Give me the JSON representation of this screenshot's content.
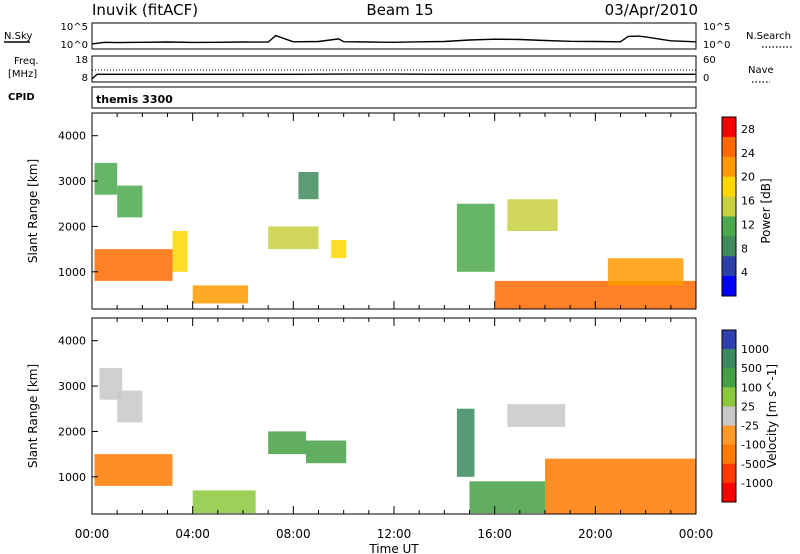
{
  "header": {
    "station": "Inuvik (fitACF)",
    "beam": "Beam 15",
    "date": "03/Apr/2010"
  },
  "strip_labels": {
    "nsky": "N.Sky",
    "nsearch": "N.Search",
    "freq_line1": "Freq.",
    "freq_line2": "[MHz]",
    "nave": "Nave",
    "cpid": "CPID",
    "cpid_value": "themis 3300"
  },
  "strip_ticks": {
    "nsky_top": "10^5",
    "nsky_bottom": "10^0",
    "nsearch_top": "10^5",
    "nsearch_bottom": "10^0",
    "freq_top": "18",
    "freq_bottom": "8",
    "nave_top": "60",
    "nave_bottom": "0"
  },
  "colors": {
    "power_scale": [
      "#0000ff",
      "#2b3fa6",
      "#3f8a5a",
      "#4ca84c",
      "#c8d040",
      "#ffd700",
      "#ff9a00",
      "#ff6a00",
      "#ff0000"
    ],
    "velocity_scale": [
      "#2f3fb0",
      "#3a8a5e",
      "#45a045",
      "#8cc83c",
      "#c8c8c8",
      "#ff9a2a",
      "#ff7a00",
      "#ff3a00",
      "#ff0000"
    ]
  },
  "chart_data": [
    {
      "type": "line",
      "title": "N.Sky / N.Search",
      "x_unit": "hours UT",
      "y_scale": "log",
      "ylim": [
        1,
        100000
      ],
      "x": [
        0,
        0.5,
        1,
        2,
        3,
        4,
        5,
        6,
        7,
        7.3,
        8,
        9,
        9.8,
        10,
        11,
        12,
        13,
        14,
        15,
        16,
        17,
        18,
        19,
        20,
        21,
        21.3,
        21.7,
        22,
        23,
        24
      ],
      "series": [
        {
          "values": [
            5,
            12,
            10,
            12,
            14,
            11,
            12,
            14,
            13,
            400,
            15,
            18,
            70,
            16,
            14,
            12,
            15,
            18,
            40,
            60,
            50,
            30,
            20,
            18,
            15,
            250,
            300,
            200,
            25,
            15
          ]
        }
      ]
    },
    {
      "type": "line",
      "title": "Freq. [MHz] / Nave",
      "x_unit": "hours UT",
      "ylim": [
        8,
        18
      ],
      "x": [
        0,
        0.2,
        2,
        4,
        6,
        8,
        10,
        12,
        14,
        16,
        18,
        20,
        22,
        24
      ],
      "series": [
        {
          "values": [
            8.5,
            10.6,
            10.6,
            10.6,
            10.6,
            10.6,
            10.7,
            10.7,
            10.6,
            10.6,
            10.6,
            10.6,
            10.6,
            10.6
          ]
        }
      ]
    },
    {
      "type": "heatmap",
      "xlabel": "Time UT",
      "ylabel": "Slant Range [km]",
      "colorbar_label": "Power [dB]",
      "colorbar_ticks": [
        "4",
        "8",
        "12",
        "16",
        "20",
        "24",
        "28"
      ],
      "zlim": [
        0,
        30
      ],
      "xlim": [
        0,
        24
      ],
      "ylim": [
        180,
        4500
      ],
      "y_ticks": [
        "1000",
        "2000",
        "3000",
        "4000"
      ],
      "x_ticks": [
        "00:00",
        "04:00",
        "08:00",
        "12:00",
        "16:00",
        "20:00",
        "00:00"
      ],
      "regions": [
        {
          "t0": 0.1,
          "t1": 3.2,
          "r0": 800,
          "r1": 1500,
          "value": 26
        },
        {
          "t0": 0.1,
          "t1": 1.0,
          "r0": 2700,
          "r1": 3400,
          "value": 10
        },
        {
          "t0": 1.0,
          "t1": 2.0,
          "r0": 2200,
          "r1": 2900,
          "value": 12
        },
        {
          "t0": 3.2,
          "t1": 3.8,
          "r0": 1000,
          "r1": 1900,
          "value": 18
        },
        {
          "t0": 4.0,
          "t1": 6.2,
          "r0": 300,
          "r1": 700,
          "value": 22
        },
        {
          "t0": 7.0,
          "t1": 9.0,
          "r0": 1500,
          "r1": 2000,
          "value": 16
        },
        {
          "t0": 8.2,
          "t1": 9.0,
          "r0": 2600,
          "r1": 3200,
          "value": 9
        },
        {
          "t0": 9.5,
          "t1": 10.1,
          "r0": 1300,
          "r1": 1700,
          "value": 18
        },
        {
          "t0": 14.5,
          "t1": 16.0,
          "r0": 1000,
          "r1": 2500,
          "value": 12
        },
        {
          "t0": 16.5,
          "t1": 18.5,
          "r0": 1900,
          "r1": 2600,
          "value": 16
        },
        {
          "t0": 16.0,
          "t1": 24.0,
          "r0": 180,
          "r1": 800,
          "value": 24
        },
        {
          "t0": 20.5,
          "t1": 23.5,
          "r0": 700,
          "r1": 1300,
          "value": 22
        }
      ]
    },
    {
      "type": "heatmap",
      "xlabel": "Time UT",
      "ylabel": "Slant Range [km]",
      "colorbar_label": "Velocity [m s^-1]",
      "colorbar_ticks": [
        "1000",
        "500",
        "100",
        "25",
        "-25",
        "-100",
        "-500",
        "-1000"
      ],
      "xlim": [
        0,
        24
      ],
      "ylim": [
        180,
        4500
      ],
      "y_ticks": [
        "1000",
        "2000",
        "3000",
        "4000"
      ],
      "x_ticks": [
        "00:00",
        "04:00",
        "08:00",
        "12:00",
        "16:00",
        "20:00",
        "00:00"
      ],
      "regions": [
        {
          "t0": 0.1,
          "t1": 3.2,
          "r0": 800,
          "r1": 1500,
          "value": -200
        },
        {
          "t0": 0.3,
          "t1": 1.2,
          "r0": 2700,
          "r1": 3400,
          "value": 0
        },
        {
          "t0": 1.0,
          "t1": 2.0,
          "r0": 2200,
          "r1": 2900,
          "value": 0
        },
        {
          "t0": 4.0,
          "t1": 6.5,
          "r0": 200,
          "r1": 700,
          "value": 60
        },
        {
          "t0": 7.0,
          "t1": 8.5,
          "r0": 1500,
          "r1": 2000,
          "value": 300
        },
        {
          "t0": 8.5,
          "t1": 10.1,
          "r0": 1300,
          "r1": 1800,
          "value": 300
        },
        {
          "t0": 14.5,
          "t1": 15.2,
          "r0": 1000,
          "r1": 2500,
          "value": 800
        },
        {
          "t0": 16.5,
          "t1": 18.8,
          "r0": 2100,
          "r1": 2600,
          "value": 0
        },
        {
          "t0": 15.0,
          "t1": 18.0,
          "r0": 200,
          "r1": 900,
          "value": 100
        },
        {
          "t0": 18.0,
          "t1": 24.0,
          "r0": 180,
          "r1": 1400,
          "value": -400
        }
      ]
    }
  ]
}
